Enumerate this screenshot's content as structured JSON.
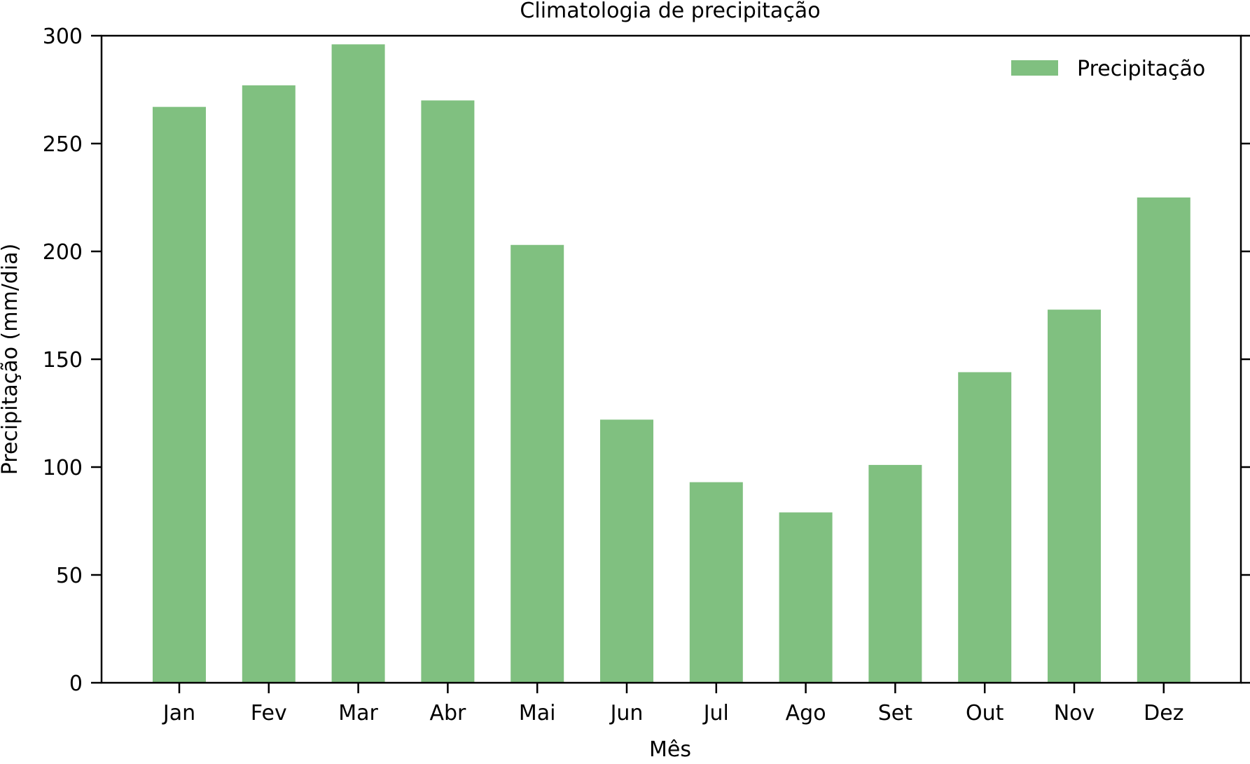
{
  "chart_data": {
    "type": "bar",
    "title": "Climatologia de precipitação",
    "xlabel": "Mês",
    "ylabel": "Precipitação (mm/dia)",
    "categories": [
      "Jan",
      "Fev",
      "Mar",
      "Abr",
      "Mai",
      "Jun",
      "Jul",
      "Ago",
      "Set",
      "Out",
      "Nov",
      "Dez"
    ],
    "series": [
      {
        "name": "Precipitação",
        "color": "#80c080",
        "values": [
          267,
          277,
          296,
          270,
          203,
          122,
          93,
          79,
          101,
          144,
          173,
          225
        ]
      }
    ],
    "ylim": [
      0,
      300
    ],
    "yticks": [
      0,
      50,
      100,
      150,
      200,
      250,
      300
    ],
    "grid": false,
    "legend": "top-right"
  }
}
